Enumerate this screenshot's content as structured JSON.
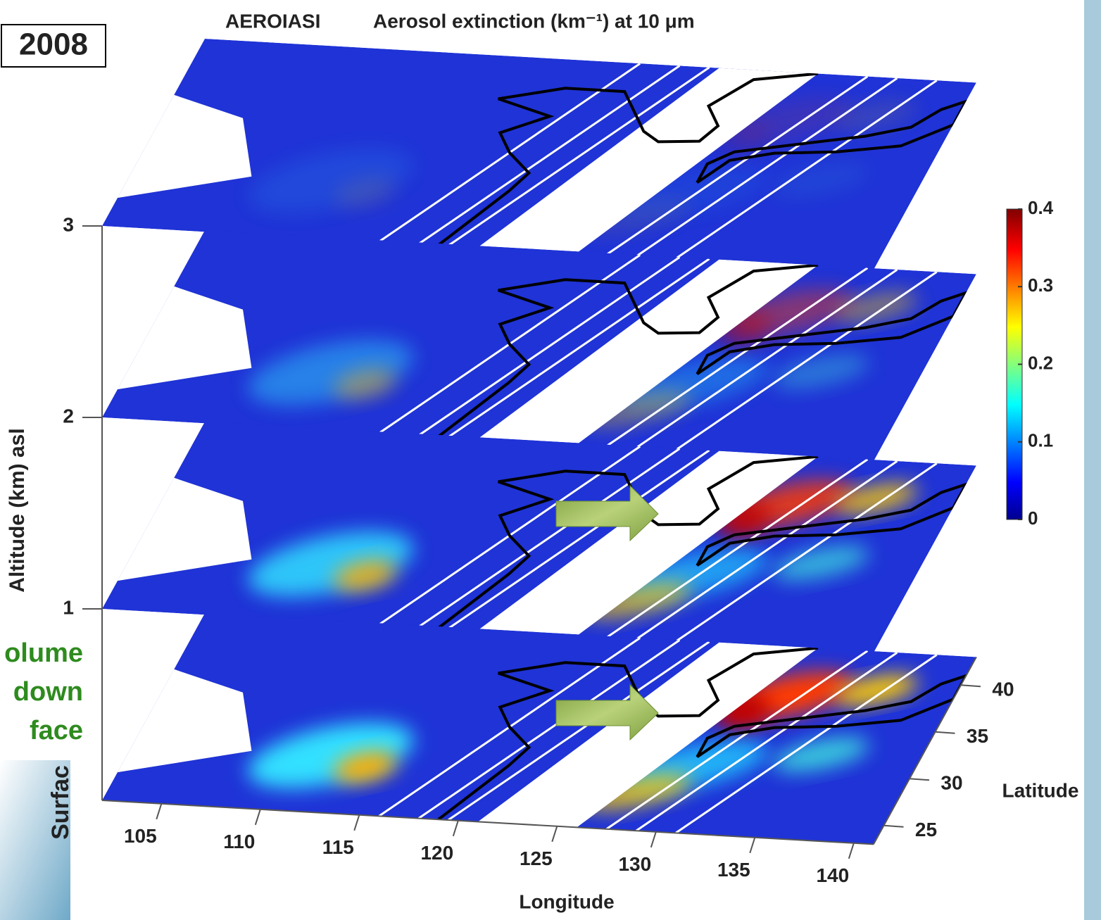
{
  "chart_data": {
    "type": "stacked-maps",
    "title_prefix": "AEROIASI",
    "title": "Aerosol extinction (km⁻¹) at 10 μm",
    "year_label": "2008",
    "annotation_lines": [
      "olume",
      "down",
      "face"
    ],
    "surface_label": "Surfac",
    "xlabel": "Longitude",
    "xlim": [
      102,
      141
    ],
    "xticks": [
      105,
      110,
      115,
      120,
      125,
      130,
      135,
      140
    ],
    "ylabel": "Latitude",
    "ylim": [
      23,
      43
    ],
    "yticks": [
      25,
      30,
      35,
      40
    ],
    "zlabel": "Altitude (km) asl",
    "zlim": [
      0,
      3
    ],
    "zticks": [
      1,
      2,
      3
    ],
    "layers": [
      0,
      1,
      2,
      3
    ],
    "colorbar": {
      "lim": [
        0,
        0.4
      ],
      "ticks": [
        0,
        0.1,
        0.2,
        0.3,
        0.4
      ]
    }
  }
}
